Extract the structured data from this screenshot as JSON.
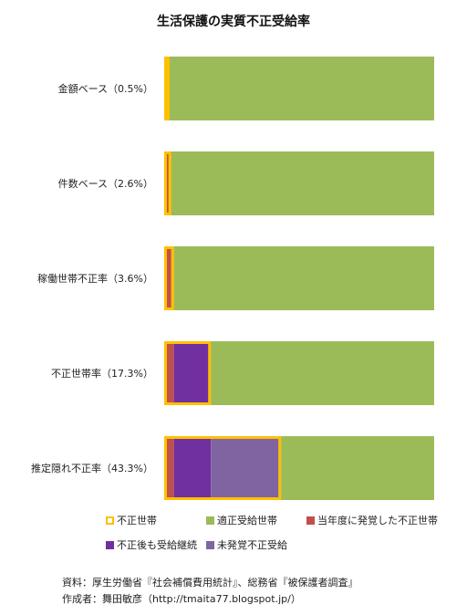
{
  "chart_data": {
    "type": "bar",
    "orientation": "horizontal",
    "stacked": true,
    "title": "生活保護の実質不正受給率",
    "categories": [
      "金額ベース（0.5%）",
      "件数ベース（2.6%）",
      "稼働世帯不正率（3.6%）",
      "不正世帯率（17.3%）",
      "推定隠れ不正率（43.3%）"
    ],
    "xlim": [
      0,
      100
    ],
    "series": [
      {
        "name": "当年度に発覚した不正世帯",
        "color": "#c0504d",
        "values": [
          0.5,
          2.6,
          3.6,
          3.6,
          3.6
        ]
      },
      {
        "name": "不正後も受給継続",
        "color": "#7030a0",
        "values": [
          0,
          0,
          0,
          13.7,
          13.7
        ]
      },
      {
        "name": "未発覚不正受給",
        "color": "#8064a2",
        "values": [
          0,
          0,
          0,
          0,
          26.0
        ]
      },
      {
        "name": "適正受給世帯",
        "color": "#9bbb59",
        "values": [
          99.5,
          97.4,
          96.4,
          82.7,
          56.7
        ]
      }
    ],
    "outline": {
      "name": "不正世帯",
      "color": "#ffc000",
      "values": [
        0.5,
        2.6,
        3.6,
        17.3,
        43.3
      ]
    },
    "legend_position": "bottom"
  },
  "source_lines": [
    "資料：厚生労働省『社会補償費用統計』、総務省『被保護者調査』",
    "作成者：舞田敏彦（http://tmaita77.blogspot.jp/）"
  ]
}
